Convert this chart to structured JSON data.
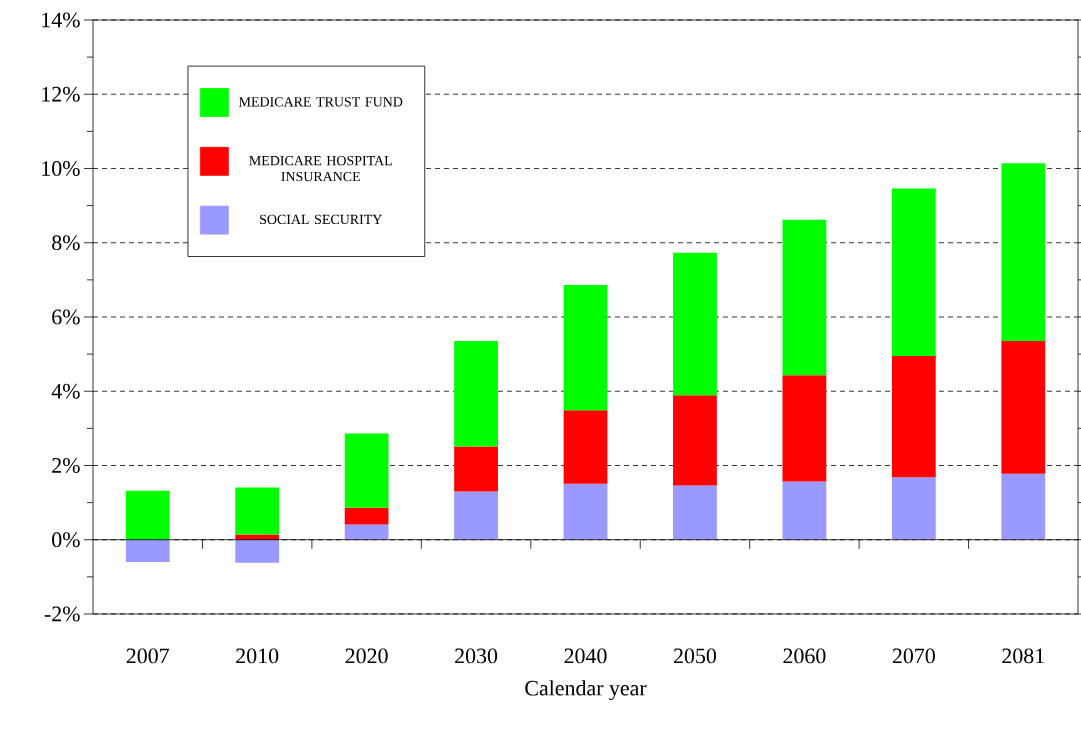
{
  "chart_data": {
    "type": "bar",
    "stacked": true,
    "categories": [
      "2007",
      "2010",
      "2020",
      "2030",
      "2040",
      "2050",
      "2060",
      "2070",
      "2081"
    ],
    "series": [
      {
        "name": "SOCIAL SECURITY",
        "color": "#9999ff",
        "values": [
          -0.6,
          -0.62,
          0.41,
          1.3,
          1.51,
          1.46,
          1.57,
          1.68,
          1.78
        ]
      },
      {
        "name": "MEDICARE HOSPITAL INSURANCE",
        "color": "#ff0000",
        "values": [
          0,
          0.14,
          0.45,
          1.21,
          1.98,
          2.43,
          2.86,
          3.27,
          3.57
        ]
      },
      {
        "name": "MEDICARE TRUST FUND",
        "color": "#00ff00",
        "values": [
          1.32,
          1.27,
          2.0,
          2.84,
          3.37,
          3.84,
          4.19,
          4.51,
          4.79
        ]
      }
    ],
    "xlabel": "Calendar year",
    "ylim": [
      -2,
      14
    ],
    "yticks": [
      {
        "value": -2,
        "label": "-2%"
      },
      {
        "value": 0,
        "label": "0%"
      },
      {
        "value": 2,
        "label": "2%"
      },
      {
        "value": 4,
        "label": "4%"
      },
      {
        "value": 6,
        "label": "6%"
      },
      {
        "value": 8,
        "label": "8%"
      },
      {
        "value": 10,
        "label": "10%"
      },
      {
        "value": 12,
        "label": "12%"
      },
      {
        "value": 14,
        "label": "14%"
      }
    ],
    "grid": "y",
    "legend": "top left"
  }
}
